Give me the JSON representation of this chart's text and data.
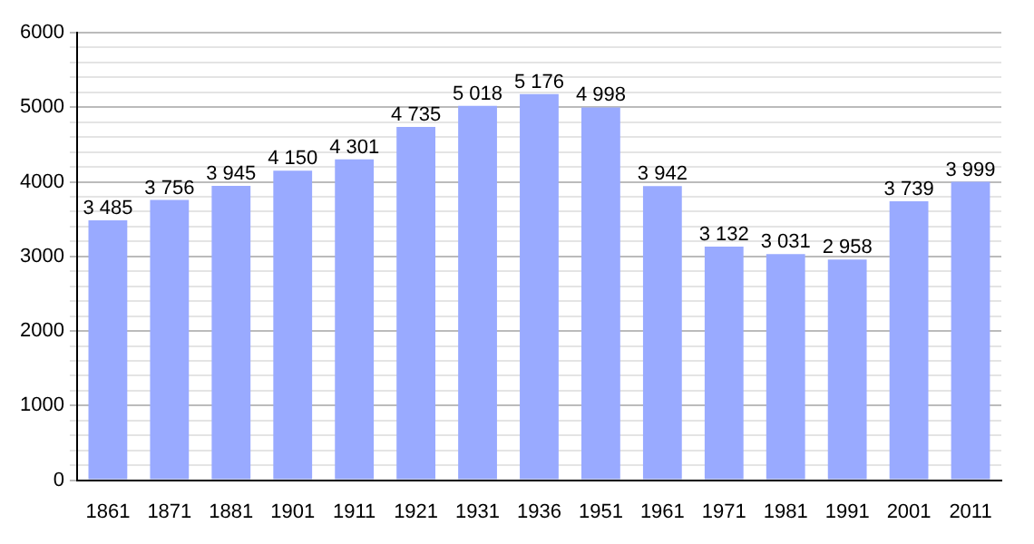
{
  "chart_data": {
    "type": "bar",
    "categories": [
      "1861",
      "1871",
      "1881",
      "1901",
      "1911",
      "1921",
      "1931",
      "1936",
      "1951",
      "1961",
      "1971",
      "1981",
      "1991",
      "2001",
      "2011"
    ],
    "values": [
      3485,
      3756,
      3945,
      4150,
      4301,
      4735,
      5018,
      5176,
      4998,
      3942,
      3132,
      3031,
      2958,
      3739,
      3999
    ],
    "value_labels": [
      "3 485",
      "3 756",
      "3 945",
      "4 150",
      "4 301",
      "4 735",
      "5 018",
      "5 176",
      "4 998",
      "3 942",
      "3 132",
      "3 031",
      "2 958",
      "3 739",
      "3 999"
    ],
    "color": "#99aaff",
    "ylim": [
      0,
      6000
    ],
    "yticks": [
      0,
      {
        "value": 200,
        "label": null
      },
      {
        "value": 400,
        "label": null
      },
      {
        "value": 600,
        "label": null
      },
      {
        "value": 800,
        "label": null
      },
      1000,
      {
        "value": 1200,
        "label": null
      },
      {
        "value": 1400,
        "label": null
      },
      {
        "value": 1600,
        "label": null
      },
      {
        "value": 1800,
        "label": null
      },
      2000,
      {
        "value": 2200,
        "label": null
      },
      {
        "value": 2400,
        "label": null
      },
      {
        "value": 2600,
        "label": null
      },
      {
        "value": 2800,
        "label": null
      },
      3000,
      {
        "value": 3200,
        "label": null
      },
      {
        "value": 3400,
        "label": null
      },
      {
        "value": 3600,
        "label": null
      },
      {
        "value": 3800,
        "label": null
      },
      4000,
      {
        "value": 4200,
        "label": null
      },
      {
        "value": 4400,
        "label": null
      },
      {
        "value": 4600,
        "label": null
      },
      {
        "value": 4800,
        "label": null
      },
      5000,
      {
        "value": 5200,
        "label": null
      },
      {
        "value": 5400,
        "label": null
      },
      {
        "value": 5600,
        "label": null
      },
      {
        "value": 5800,
        "label": null
      },
      6000
    ],
    "grid": "y"
  }
}
